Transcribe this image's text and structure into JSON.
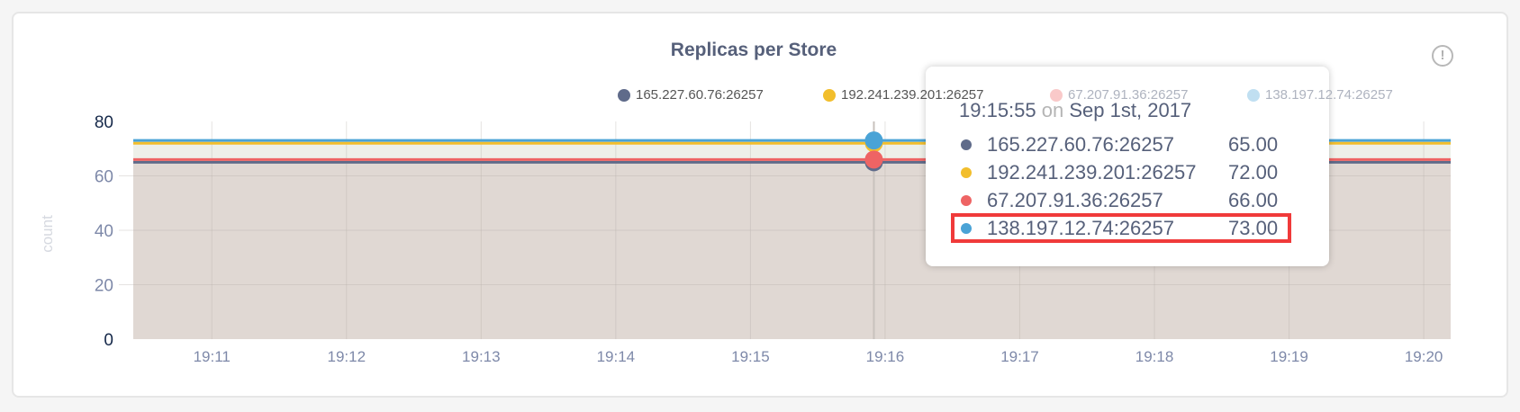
{
  "chart_data": {
    "type": "area",
    "title": "Replicas per Store",
    "ylabel": "count",
    "xlabel": "",
    "ylim": [
      0,
      80
    ],
    "yticks": [
      "0",
      "20",
      "40",
      "60",
      "80"
    ],
    "xticks": [
      "19:11",
      "19:12",
      "19:13",
      "19:14",
      "19:15",
      "19:16",
      "19:17",
      "19:18",
      "19:19",
      "19:20"
    ],
    "xlim": [
      "19:10:25",
      "19:20:12"
    ],
    "grid": true,
    "legend": "top",
    "x": [
      "19:10:25",
      "19:15:55",
      "19:20:12"
    ],
    "series": [
      {
        "name": "165.227.60.76:26257",
        "color": "#5f6b8a",
        "values": [
          65,
          65,
          65
        ]
      },
      {
        "name": "192.241.239.201:26257",
        "color": "#f2be2c",
        "values": [
          72,
          72,
          72
        ]
      },
      {
        "name": "67.207.91.36:26257",
        "color": "#ee6464",
        "values": [
          66,
          66,
          66
        ]
      },
      {
        "name": "138.197.12.74:26257",
        "color": "#4aa3d6",
        "values": [
          73,
          73,
          73
        ]
      }
    ]
  },
  "tooltip": {
    "time": "19:15:55",
    "on": "on",
    "date": "Sep 1st, 2017",
    "rows": [
      {
        "label": "165.227.60.76:26257",
        "value": "65.00"
      },
      {
        "label": "192.241.239.201:26257",
        "value": "72.00"
      },
      {
        "label": "67.207.91.36:26257",
        "value": "66.00"
      },
      {
        "label": "138.197.12.74:26257",
        "value": "73.00",
        "highlighted": true
      }
    ]
  },
  "info_icon": "info-icon"
}
